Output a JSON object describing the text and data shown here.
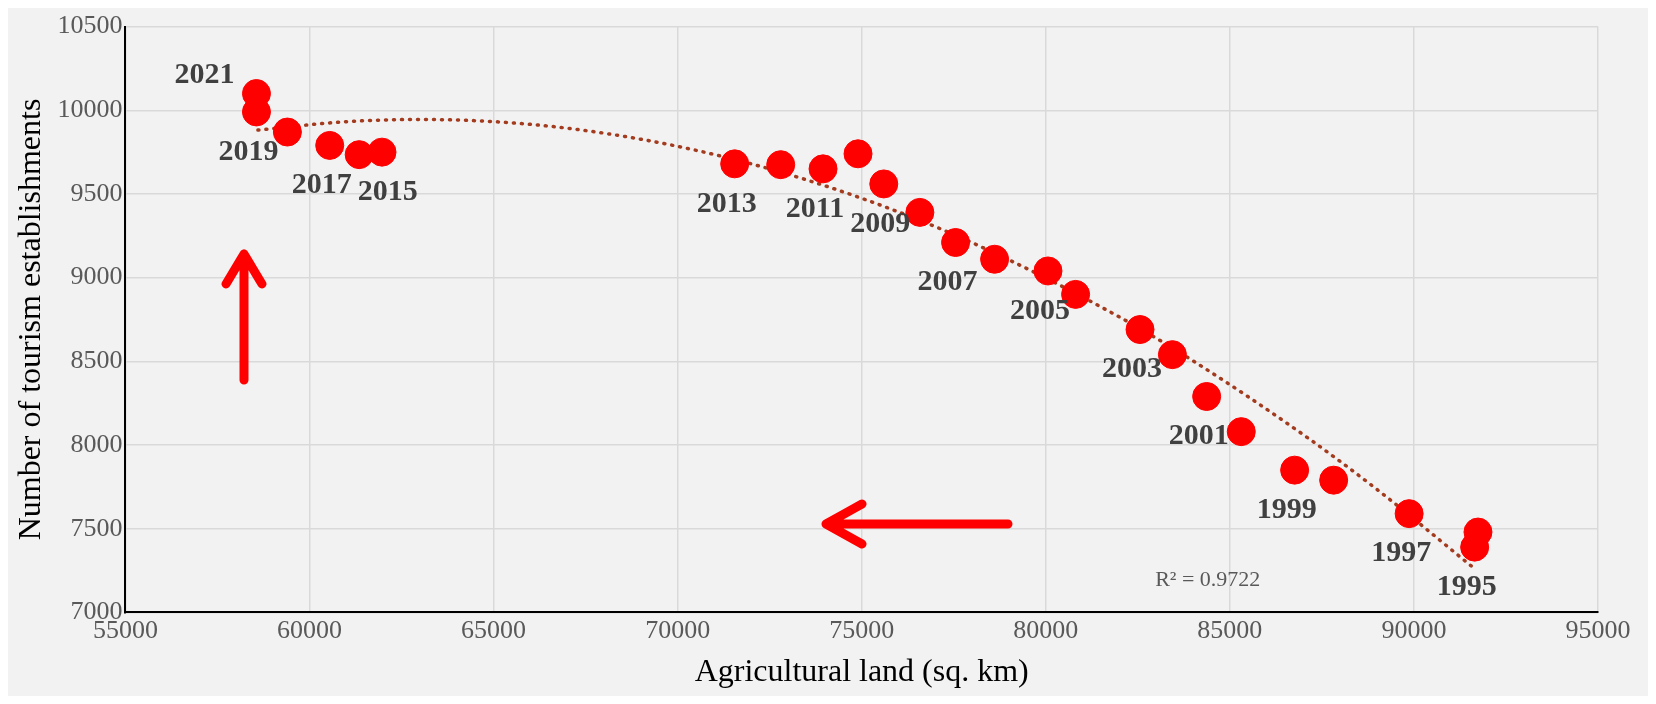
{
  "chart_data": {
    "type": "scatter",
    "xlabel": "Agricultural land (sq. km)",
    "ylabel": "Number of tourism establishments",
    "xlim": [
      55000,
      95000
    ],
    "xticks": [
      55000,
      60000,
      65000,
      70000,
      75000,
      80000,
      85000,
      90000,
      95000
    ],
    "ylim": [
      7000,
      10500
    ],
    "yticks": [
      7000,
      7500,
      8000,
      8500,
      9000,
      9500,
      10000,
      10500
    ],
    "grid": true,
    "series": [
      {
        "color": "#ff0000",
        "marker": "circle",
        "x": [
          58560,
          58560,
          59400,
          60550,
          61350,
          61970,
          71550,
          72800,
          73950,
          74900,
          75600,
          76580,
          77550,
          78610,
          80060,
          80810,
          82560,
          83440,
          84370,
          85310,
          86760,
          87820,
          89870,
          91740,
          91650
        ],
        "values": [
          10100,
          9990,
          9870,
          9790,
          9735,
          9750,
          9680,
          9675,
          9650,
          9740,
          9560,
          9390,
          9210,
          9110,
          9040,
          8900,
          8690,
          8540,
          8290,
          8080,
          7850,
          7790,
          7590,
          7480,
          7390
        ]
      },
      {
        "type": "line",
        "color": "#a33b1e",
        "line_style": "dotted",
        "marker": "none",
        "x": [
          58600,
          61000,
          63000,
          66000,
          69000,
          72000,
          75000,
          78000,
          82000,
          84000,
          87000,
          89000,
          91650
        ],
        "values": [
          9882,
          9932,
          9945,
          9916,
          9827,
          9680,
          9474,
          9209,
          8765,
          8503,
          8061,
          7734,
          7261
        ]
      }
    ],
    "annotations": [
      {
        "text": "2021",
        "x": 58560,
        "y": 10100
      },
      {
        "text": "2019",
        "x": 58560,
        "y": 9990
      },
      {
        "text": "2017",
        "x": 60550,
        "y": 9790
      },
      {
        "text": "2015",
        "x": 61970,
        "y": 9750
      },
      {
        "text": "2013",
        "x": 71550,
        "y": 9680
      },
      {
        "text": "2011",
        "x": 73950,
        "y": 9650
      },
      {
        "text": "2009",
        "x": 75600,
        "y": 9560
      },
      {
        "text": "2007",
        "x": 77550,
        "y": 9210
      },
      {
        "text": "2005",
        "x": 80060,
        "y": 9040
      },
      {
        "text": "2003",
        "x": 82560,
        "y": 8690
      },
      {
        "text": "2001",
        "x": 84370,
        "y": 8290
      },
      {
        "text": "1999",
        "x": 86760,
        "y": 7850
      },
      {
        "text": "1997",
        "x": 89870,
        "y": 7590
      },
      {
        "text": "1995",
        "x": 91650,
        "y": 7390
      },
      "R² = 0.9722"
    ]
  }
}
